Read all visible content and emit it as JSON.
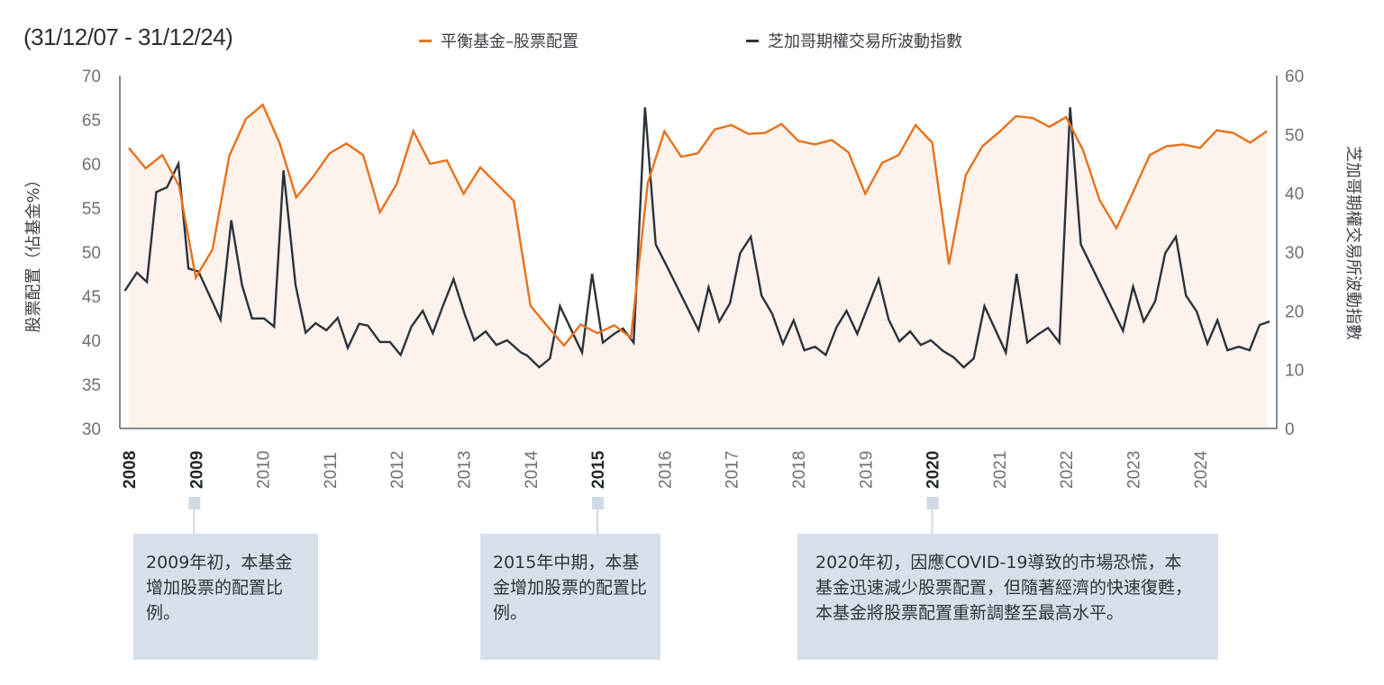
{
  "chart_data": {
    "type": "line",
    "subtitle": "(31/12/07 - 31/12/24)",
    "ylabel_left": "股票配置（佔基金%）",
    "ylabel_right": "芝加哥期權交易所波動指數",
    "ylim_left": [
      30,
      70
    ],
    "yticks_left": [
      70,
      65,
      60,
      55,
      50,
      45,
      40,
      35,
      30
    ],
    "ylim_right": [
      0,
      60
    ],
    "yticks_right": [
      60,
      50,
      40,
      30,
      20,
      10,
      0
    ],
    "xticks": [
      "2008",
      "2009",
      "2010",
      "2011",
      "2012",
      "2013",
      "2014",
      "2015",
      "2016",
      "2017",
      "2018",
      "2019",
      "2020",
      "2021",
      "2022",
      "2023",
      "2024"
    ],
    "xticks_bold": [
      "2008",
      "2009",
      "2015",
      "2020"
    ],
    "grid": false,
    "legend_position": "top",
    "series": [
      {
        "name": "平衡基金–股票配置",
        "axis": "left",
        "color": "#e8711c",
        "area_fill": "#fdf3ec",
        "points": [
          [
            2008.0,
            61.8
          ],
          [
            2008.25,
            59.5
          ],
          [
            2008.5,
            61.0
          ],
          [
            2008.75,
            57.5
          ],
          [
            2009.0,
            47.1
          ],
          [
            2009.25,
            50.3
          ],
          [
            2009.5,
            60.9
          ],
          [
            2009.75,
            65.1
          ],
          [
            2010.0,
            66.7
          ],
          [
            2010.25,
            62.4
          ],
          [
            2010.5,
            56.2
          ],
          [
            2010.75,
            58.5
          ],
          [
            2011.0,
            61.2
          ],
          [
            2011.25,
            62.3
          ],
          [
            2011.5,
            61.0
          ],
          [
            2011.75,
            54.5
          ],
          [
            2012.0,
            57.7
          ],
          [
            2012.25,
            63.7
          ],
          [
            2012.5,
            60.0
          ],
          [
            2012.75,
            60.4
          ],
          [
            2013.0,
            56.6
          ],
          [
            2013.25,
            59.6
          ],
          [
            2013.5,
            57.7
          ],
          [
            2013.75,
            55.8
          ],
          [
            2014.0,
            43.9
          ],
          [
            2014.25,
            41.6
          ],
          [
            2014.5,
            39.4
          ],
          [
            2014.75,
            41.8
          ],
          [
            2015.0,
            40.8
          ],
          [
            2015.25,
            41.7
          ],
          [
            2015.5,
            40.3
          ],
          [
            2015.75,
            57.8
          ],
          [
            2016.0,
            63.7
          ],
          [
            2016.25,
            60.8
          ],
          [
            2016.5,
            61.2
          ],
          [
            2016.75,
            63.9
          ],
          [
            2017.0,
            64.4
          ],
          [
            2017.25,
            63.4
          ],
          [
            2017.5,
            63.5
          ],
          [
            2017.75,
            64.5
          ],
          [
            2018.0,
            62.6
          ],
          [
            2018.25,
            62.2
          ],
          [
            2018.5,
            62.7
          ],
          [
            2018.75,
            61.3
          ],
          [
            2019.0,
            56.6
          ],
          [
            2019.25,
            60.1
          ],
          [
            2019.5,
            61.0
          ],
          [
            2019.75,
            64.4
          ],
          [
            2020.0,
            62.4
          ],
          [
            2020.25,
            48.6
          ],
          [
            2020.5,
            58.7
          ],
          [
            2020.75,
            62.0
          ],
          [
            2021.0,
            63.6
          ],
          [
            2021.25,
            65.4
          ],
          [
            2021.5,
            65.2
          ],
          [
            2021.75,
            64.2
          ],
          [
            2022.0,
            65.3
          ],
          [
            2022.25,
            61.6
          ],
          [
            2022.5,
            55.9
          ],
          [
            2022.75,
            52.7
          ],
          [
            2023.0,
            56.8
          ],
          [
            2023.25,
            61.0
          ],
          [
            2023.5,
            62.0
          ],
          [
            2023.75,
            62.2
          ],
          [
            2024.0,
            61.8
          ],
          [
            2024.25,
            63.8
          ],
          [
            2024.5,
            63.5
          ],
          [
            2024.75,
            62.4
          ],
          [
            2025.0,
            63.7
          ]
        ]
      },
      {
        "name": "芝加哥期權交易所波動指數",
        "axis": "right",
        "color": "#2b323c",
        "points": [
          [
            2007.94,
            23.4
          ],
          [
            2008.12,
            26.5
          ],
          [
            2008.27,
            24.9
          ],
          [
            2008.41,
            40.2
          ],
          [
            2008.57,
            41.0
          ],
          [
            2008.74,
            45.0
          ],
          [
            2008.89,
            27.2
          ],
          [
            2009.04,
            26.7
          ],
          [
            2009.37,
            18.5
          ],
          [
            2009.53,
            35.4
          ],
          [
            2009.69,
            24.4
          ],
          [
            2009.84,
            18.7
          ],
          [
            2010.02,
            18.7
          ],
          [
            2010.17,
            17.3
          ],
          [
            2010.31,
            43.9
          ],
          [
            2010.49,
            24.4
          ],
          [
            2010.64,
            16.3
          ],
          [
            2010.79,
            17.9
          ],
          [
            2010.95,
            16.7
          ],
          [
            2011.12,
            18.8
          ],
          [
            2011.27,
            13.7
          ],
          [
            2011.44,
            17.8
          ],
          [
            2011.57,
            17.5
          ],
          [
            2011.75,
            14.7
          ],
          [
            2011.9,
            14.7
          ],
          [
            2012.06,
            12.5
          ],
          [
            2012.22,
            17.3
          ],
          [
            2012.39,
            20.0
          ],
          [
            2012.54,
            16.2
          ],
          [
            2012.69,
            20.8
          ],
          [
            2012.85,
            25.4
          ],
          [
            2013.02,
            19.3
          ],
          [
            2013.16,
            15.0
          ],
          [
            2013.33,
            16.5
          ],
          [
            2013.49,
            14.2
          ],
          [
            2013.65,
            15.0
          ],
          [
            2013.86,
            12.9
          ],
          [
            2013.95,
            12.4
          ],
          [
            2014.13,
            10.4
          ],
          [
            2014.29,
            11.9
          ],
          [
            2014.44,
            20.8
          ],
          [
            2014.77,
            12.9
          ],
          [
            2014.92,
            26.3
          ],
          [
            2015.08,
            14.6
          ],
          [
            2015.25,
            16.1
          ],
          [
            2015.38,
            17.0
          ],
          [
            2015.54,
            14.6
          ],
          [
            2015.71,
            54.6
          ],
          [
            2015.87,
            31.3
          ],
          [
            2016.04,
            27.5
          ],
          [
            2016.51,
            16.7
          ],
          [
            2016.66,
            24.0
          ],
          [
            2016.82,
            18.2
          ],
          [
            2016.98,
            21.3
          ],
          [
            2017.13,
            29.8
          ],
          [
            2017.29,
            32.6
          ],
          [
            2017.45,
            22.6
          ],
          [
            2017.61,
            19.5
          ],
          [
            2017.77,
            14.4
          ],
          [
            2017.93,
            18.4
          ],
          [
            2018.09,
            13.3
          ],
          [
            2018.25,
            13.9
          ],
          [
            2018.41,
            12.5
          ],
          [
            2018.57,
            17.2
          ],
          [
            2018.72,
            20.0
          ],
          [
            2018.88,
            16.1
          ],
          [
            2019.2,
            25.4
          ],
          [
            2019.35,
            18.5
          ],
          [
            2019.51,
            14.8
          ],
          [
            2019.67,
            16.5
          ],
          [
            2019.83,
            14.2
          ],
          [
            2019.98,
            15.0
          ],
          [
            2020.16,
            13.2
          ],
          [
            2020.32,
            12.1
          ],
          [
            2020.47,
            10.4
          ],
          [
            2020.62,
            11.9
          ],
          [
            2020.78,
            20.8
          ],
          [
            2021.1,
            12.9
          ],
          [
            2021.26,
            26.3
          ],
          [
            2021.42,
            14.6
          ],
          [
            2021.58,
            16.0
          ],
          [
            2021.73,
            17.1
          ],
          [
            2021.9,
            14.6
          ],
          [
            2022.06,
            54.6
          ],
          [
            2022.22,
            31.3
          ],
          [
            2022.85,
            16.6
          ],
          [
            2023.0,
            24.1
          ],
          [
            2023.16,
            18.2
          ],
          [
            2023.33,
            21.6
          ],
          [
            2023.48,
            29.8
          ],
          [
            2023.64,
            32.6
          ],
          [
            2023.79,
            22.6
          ],
          [
            2023.95,
            19.9
          ],
          [
            2024.11,
            14.4
          ],
          [
            2024.26,
            18.4
          ],
          [
            2024.41,
            13.3
          ],
          [
            2024.58,
            13.9
          ],
          [
            2024.74,
            13.3
          ],
          [
            2024.89,
            17.6
          ],
          [
            2025.04,
            18.2
          ]
        ]
      }
    ],
    "annotations": [
      {
        "year": "2009",
        "text": "2009年初，本基金增加股票的配置比例。"
      },
      {
        "year": "2015",
        "text": "2015年中期，本基金增加股票的配置比例。"
      },
      {
        "year": "2020",
        "text": "2020年初，因應COVID-19導致的市場恐慌，本基金迅速減少股票配置，但隨著經濟的快速復甦，本基金將股票配置重新調整至最高水平。"
      }
    ],
    "annotation_box_color": "#d6e0ea"
  }
}
